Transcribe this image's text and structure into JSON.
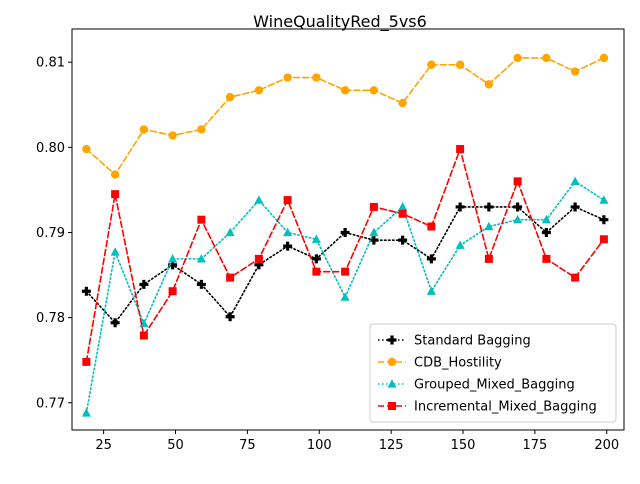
{
  "chart_data": {
    "type": "line",
    "title": "WineQualityRed_5vs6",
    "xlabel": "",
    "ylabel": "",
    "xlim": [
      14,
      206
    ],
    "ylim": [
      0.7668,
      0.8139
    ],
    "xticks": [
      25,
      50,
      75,
      100,
      125,
      150,
      175,
      200
    ],
    "yticks": [
      0.77,
      0.78,
      0.79,
      0.8,
      0.81
    ],
    "grid": false,
    "legend_position": "lower-right",
    "x": [
      19,
      29,
      39,
      49,
      59,
      69,
      79,
      89,
      99,
      109,
      119,
      129,
      139,
      149,
      159,
      169,
      179,
      189,
      199
    ],
    "series": [
      {
        "name": "Standard Bagging",
        "color": "#000000",
        "linestyle": "dotted",
        "marker": "plus",
        "values": [
          0.7831,
          0.7794,
          0.7839,
          0.7862,
          0.7839,
          0.7801,
          0.7862,
          0.7884,
          0.7869,
          0.79,
          0.7891,
          0.7891,
          0.7869,
          0.793,
          0.793,
          0.793,
          0.79,
          0.793,
          0.7915
        ]
      },
      {
        "name": "CDB_Hostility",
        "color": "#FFA500",
        "linestyle": "dashed",
        "marker": "circle",
        "values": [
          0.7998,
          0.7968,
          0.8021,
          0.8014,
          0.8021,
          0.8059,
          0.8067,
          0.8082,
          0.8082,
          0.8067,
          0.8067,
          0.8052,
          0.8097,
          0.8097,
          0.8074,
          0.8105,
          0.8105,
          0.8089,
          0.8105
        ]
      },
      {
        "name": "Grouped_Mixed_Bagging",
        "color": "#00BFBF",
        "linestyle": "dotted",
        "marker": "triangle",
        "values": [
          0.7688,
          0.7877,
          0.7793,
          0.7869,
          0.7869,
          0.79,
          0.7938,
          0.79,
          0.7892,
          0.7824,
          0.79,
          0.793,
          0.7831,
          0.7885,
          0.7907,
          0.7915,
          0.7915,
          0.796,
          0.7938
        ]
      },
      {
        "name": "Incremental_Mixed_Bagging",
        "color": "#FF0000",
        "linestyle": "dashed",
        "marker": "square",
        "values": [
          0.7748,
          0.7945,
          0.7779,
          0.7831,
          0.7915,
          0.7847,
          0.7869,
          0.7938,
          0.7854,
          0.7854,
          0.793,
          0.7922,
          0.7907,
          0.7998,
          0.7869,
          0.796,
          0.7869,
          0.7847,
          0.7892
        ]
      }
    ]
  }
}
